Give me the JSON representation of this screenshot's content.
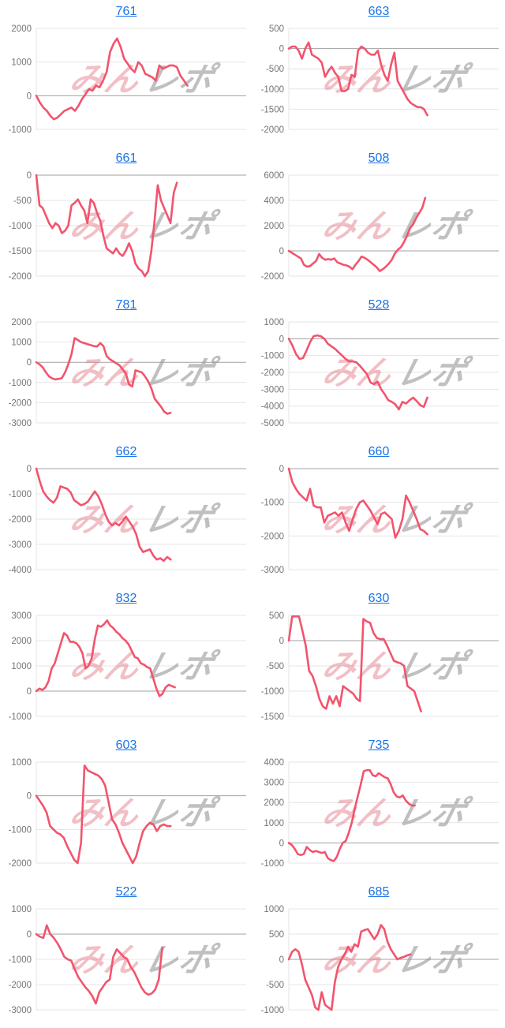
{
  "watermark": {
    "text_pink": "みん",
    "text_gray": "レポ",
    "pink_color": "#e4808c",
    "gray_color": "#9a9a9a",
    "pink_opacity": 0.5,
    "gray_opacity": 0.62
  },
  "colors": {
    "line": "#f2546d",
    "grid": "#e4e4e4",
    "zero_line": "#a0a0a0",
    "tick_label": "#757575",
    "title_link": "#1a73e8"
  },
  "chart_data": [
    {
      "type": "line",
      "title": "761",
      "yticks": [
        2000,
        1000,
        0,
        -1000
      ],
      "ylim": [
        -1000,
        2000
      ],
      "span": 0.72,
      "values": [
        0,
        -200,
        -350,
        -450,
        -600,
        -700,
        -650,
        -550,
        -450,
        -400,
        -350,
        -450,
        -300,
        -100,
        50,
        200,
        150,
        300,
        250,
        450,
        700,
        1300,
        1550,
        1700,
        1450,
        1100,
        950,
        800,
        700,
        1000,
        900,
        650,
        600,
        550,
        450,
        900,
        800,
        850,
        900,
        900,
        850,
        600,
        450,
        300
      ]
    },
    {
      "type": "line",
      "title": "663",
      "yticks": [
        500,
        0,
        -500,
        -1000,
        -1500,
        -2000
      ],
      "ylim": [
        -2000,
        500
      ],
      "span": 0.66,
      "values": [
        0,
        50,
        50,
        -50,
        -250,
        0,
        150,
        -150,
        -200,
        -250,
        -350,
        -700,
        -550,
        -450,
        -600,
        -700,
        -1050,
        -1050,
        -1000,
        -650,
        -700,
        -50,
        50,
        0,
        -100,
        -150,
        -150,
        -50,
        -400,
        -650,
        -800,
        -400,
        -100,
        -800,
        -950,
        -1100,
        -1250,
        -1350,
        -1400,
        -1450,
        -1450,
        -1500,
        -1650
      ]
    },
    {
      "type": "line",
      "title": "661",
      "yticks": [
        0,
        -500,
        -1000,
        -1500,
        -2000
      ],
      "ylim": [
        -2000,
        0
      ],
      "span": 0.67,
      "values": [
        0,
        -600,
        -650,
        -800,
        -950,
        -1050,
        -950,
        -1000,
        -1150,
        -1100,
        -1000,
        -600,
        -550,
        -480,
        -600,
        -700,
        -950,
        -480,
        -550,
        -750,
        -900,
        -1200,
        -1450,
        -1500,
        -1550,
        -1450,
        -1550,
        -1600,
        -1500,
        -1350,
        -1500,
        -1750,
        -1850,
        -1900,
        -2000,
        -1900,
        -1500,
        -900,
        -200,
        -500,
        -650,
        -800,
        -950,
        -350,
        -150
      ]
    },
    {
      "type": "line",
      "title": "508",
      "yticks": [
        6000,
        4000,
        2000,
        0,
        -2000
      ],
      "ylim": [
        -2000,
        6000
      ],
      "span": 0.65,
      "values": [
        0,
        -150,
        -300,
        -450,
        -600,
        -1100,
        -1250,
        -1200,
        -1000,
        -800,
        -250,
        -550,
        -700,
        -650,
        -700,
        -600,
        -900,
        -1000,
        -1100,
        -1150,
        -1250,
        -1450,
        -1100,
        -800,
        -450,
        -550,
        -700,
        -900,
        -1100,
        -1300,
        -1600,
        -1450,
        -1250,
        -1000,
        -700,
        -200,
        100,
        300,
        700,
        1200,
        1800,
        2100,
        2600,
        3000,
        3400,
        4200
      ]
    },
    {
      "type": "line",
      "title": "781",
      "yticks": [
        2000,
        1000,
        0,
        -1000,
        -2000,
        -3000
      ],
      "ylim": [
        -3000,
        2000
      ],
      "span": 0.64,
      "values": [
        0,
        -100,
        -250,
        -500,
        -700,
        -800,
        -850,
        -820,
        -780,
        -500,
        -100,
        400,
        1200,
        1100,
        1000,
        950,
        900,
        850,
        800,
        780,
        950,
        800,
        300,
        150,
        50,
        -50,
        -150,
        -350,
        -550,
        -1100,
        -1200,
        -400,
        -450,
        -500,
        -700,
        -950,
        -1300,
        -1800,
        -2000,
        -2200,
        -2450,
        -2550,
        -2500
      ]
    },
    {
      "type": "line",
      "title": "528",
      "yticks": [
        1000,
        0,
        -1000,
        -2000,
        -3000,
        -4000,
        -5000
      ],
      "ylim": [
        -5000,
        1000
      ],
      "span": 0.66,
      "values": [
        0,
        -400,
        -900,
        -1200,
        -1150,
        -700,
        -200,
        150,
        200,
        150,
        0,
        -300,
        -450,
        -600,
        -800,
        -1000,
        -1200,
        -1350,
        -1350,
        -1400,
        -1600,
        -1850,
        -2100,
        -2600,
        -2700,
        -2550,
        -3000,
        -3300,
        -3650,
        -3750,
        -3900,
        -4200,
        -3750,
        -3850,
        -3650,
        -3500,
        -3700,
        -3950,
        -4050,
        -3500
      ]
    },
    {
      "type": "line",
      "title": "662",
      "yticks": [
        0,
        -1000,
        -2000,
        -3000,
        -4000
      ],
      "ylim": [
        -4000,
        0
      ],
      "span": 0.64,
      "values": [
        0,
        -500,
        -900,
        -1100,
        -1250,
        -1350,
        -1150,
        -700,
        -750,
        -800,
        -950,
        -1250,
        -1350,
        -1450,
        -1400,
        -1300,
        -1100,
        -900,
        -1100,
        -1400,
        -1800,
        -2100,
        -2250,
        -2150,
        -2250,
        -2100,
        -1900,
        -2100,
        -2300,
        -2600,
        -3100,
        -3300,
        -3250,
        -3200,
        -3450,
        -3600,
        -3550,
        -3650,
        -3500,
        -3600
      ]
    },
    {
      "type": "line",
      "title": "660",
      "yticks": [
        0,
        -1000,
        -2000,
        -3000
      ],
      "ylim": [
        -3000,
        0
      ],
      "span": 0.66,
      "values": [
        0,
        -400,
        -600,
        -750,
        -850,
        -950,
        -600,
        -1100,
        -1150,
        -1150,
        -1600,
        -1400,
        -1350,
        -1300,
        -1400,
        -1300,
        -1600,
        -1850,
        -1500,
        -1200,
        -1000,
        -950,
        -1100,
        -1250,
        -1450,
        -1650,
        -1350,
        -1300,
        -1400,
        -1500,
        -2050,
        -1850,
        -1500,
        -800,
        -1000,
        -1250,
        -1500,
        -1800,
        -1850,
        -1950
      ]
    },
    {
      "type": "line",
      "title": "832",
      "yticks": [
        3000,
        2000,
        1000,
        0,
        -1000
      ],
      "ylim": [
        -1000,
        3000
      ],
      "span": 0.66,
      "values": [
        0,
        100,
        50,
        150,
        400,
        900,
        1100,
        1500,
        1900,
        2300,
        2200,
        1950,
        1950,
        1900,
        1750,
        1500,
        900,
        1000,
        1300,
        2050,
        2600,
        2550,
        2650,
        2800,
        2600,
        2500,
        2350,
        2250,
        2100,
        2000,
        1850,
        1600,
        1350,
        1300,
        1100,
        1050,
        950,
        900,
        500,
        100,
        -200,
        -100,
        150,
        250,
        200,
        150
      ]
    },
    {
      "type": "line",
      "title": "630",
      "yticks": [
        500,
        0,
        -500,
        -1000,
        -1500
      ],
      "ylim": [
        -1500,
        500
      ],
      "span": 0.63,
      "values": [
        0,
        480,
        480,
        480,
        200,
        -100,
        -600,
        -700,
        -900,
        -1150,
        -1300,
        -1350,
        -1100,
        -1250,
        -1100,
        -1300,
        -900,
        -950,
        -1000,
        -1050,
        -1150,
        -1200,
        430,
        380,
        350,
        150,
        50,
        30,
        30,
        -100,
        -250,
        -400,
        -430,
        -450,
        -500,
        -900,
        -950,
        -1000,
        -1200,
        -1400
      ]
    },
    {
      "type": "line",
      "title": "603",
      "yticks": [
        1000,
        0,
        -1000,
        -2000
      ],
      "ylim": [
        -2000,
        1000
      ],
      "span": 0.64,
      "values": [
        0,
        -150,
        -300,
        -500,
        -900,
        -1000,
        -1100,
        -1150,
        -1250,
        -1500,
        -1700,
        -1900,
        -2000,
        -1400,
        900,
        750,
        700,
        650,
        600,
        500,
        300,
        -200,
        -700,
        -850,
        -1100,
        -1400,
        -1600,
        -1800,
        -2000,
        -1800,
        -1400,
        -1050,
        -900,
        -800,
        -850,
        -1050,
        -900,
        -850,
        -900,
        -900
      ]
    },
    {
      "type": "line",
      "title": "735",
      "yticks": [
        4000,
        3000,
        2000,
        1000,
        0,
        -1000
      ],
      "ylim": [
        -1000,
        4000
      ],
      "span": 0.6,
      "values": [
        0,
        -100,
        -300,
        -550,
        -600,
        -550,
        -200,
        -350,
        -450,
        -400,
        -450,
        -500,
        -450,
        -750,
        -850,
        -900,
        -700,
        -300,
        0,
        100,
        500,
        1000,
        1700,
        2300,
        2900,
        3550,
        3600,
        3600,
        3350,
        3300,
        3450,
        3350,
        3250,
        3200,
        2900,
        2500,
        2300,
        2250,
        2350,
        2100,
        1950,
        1850,
        1850
      ]
    },
    {
      "type": "line",
      "title": "522",
      "yticks": [
        1000,
        0,
        -1000,
        -2000,
        -3000
      ],
      "ylim": [
        -3000,
        1000
      ],
      "span": 0.6,
      "values": [
        0,
        -100,
        -150,
        350,
        0,
        -150,
        -350,
        -600,
        -900,
        -1000,
        -1050,
        -1400,
        -1700,
        -1900,
        -2100,
        -2250,
        -2450,
        -2750,
        -2300,
        -2100,
        -1900,
        -1800,
        -900,
        -600,
        -750,
        -900,
        -1000,
        -1300,
        -1500,
        -1800,
        -2100,
        -2300,
        -2400,
        -2350,
        -2200,
        -1800,
        -550
      ]
    },
    {
      "type": "line",
      "title": "685",
      "yticks": [
        1000,
        500,
        0,
        -500,
        -1000
      ],
      "ylim": [
        -1000,
        1000
      ],
      "span": 0.58,
      "values": [
        0,
        150,
        200,
        150,
        -100,
        -400,
        -550,
        -700,
        -950,
        -1000,
        -650,
        -900,
        -950,
        -1000,
        -450,
        -150,
        0,
        100,
        250,
        150,
        300,
        250,
        550,
        580,
        600,
        500,
        400,
        500,
        680,
        600,
        350,
        200,
        100,
        0,
        30,
        50,
        80,
        100
      ]
    }
  ]
}
